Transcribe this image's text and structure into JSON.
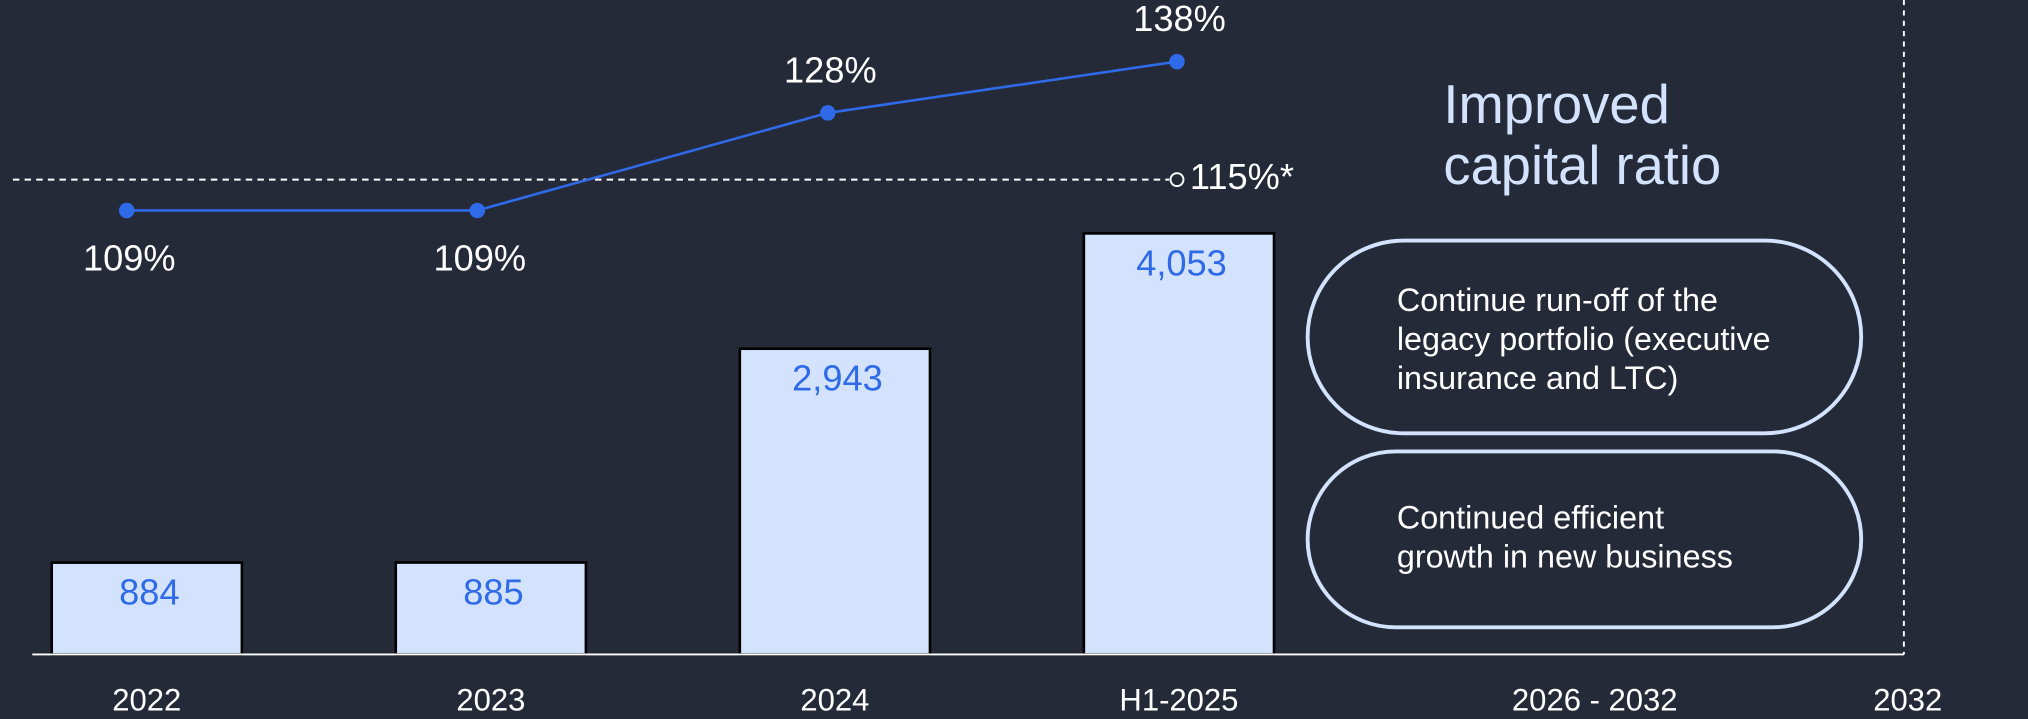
{
  "chart_data": {
    "type": "bar",
    "categories": [
      "2022",
      "2023",
      "2024",
      "H1-2025",
      "2026 - 2032",
      "2032"
    ],
    "ylim": [
      0,
      6300
    ],
    "y2lim": [
      22.5,
      150
    ],
    "series": [
      {
        "type": "bar",
        "color": "#d3e2fd",
        "label_color": "#2f6ae8",
        "values": [
          884,
          885,
          2943,
          4053,
          null,
          null
        ],
        "value_labels": [
          "884",
          "885",
          "2,943",
          "4,053",
          null,
          null
        ]
      },
      {
        "type": "line",
        "axis": "y2",
        "color": "#2f6ae8",
        "values": [
          109,
          109,
          128,
          138,
          null,
          null
        ],
        "value_labels": [
          "109%",
          "109%",
          "128%",
          "138%",
          null,
          null
        ]
      }
    ],
    "reference_line": {
      "value": 115,
      "label": "115%*",
      "axis": "y2"
    },
    "annotation": [
      "Improved",
      "capital ratio"
    ],
    "callouts": [
      [
        "Continue run-off of the",
        "legacy portfolio (executive",
        "insurance and LTC)"
      ],
      [
        "Continued efficient",
        "growth in new business"
      ]
    ]
  }
}
